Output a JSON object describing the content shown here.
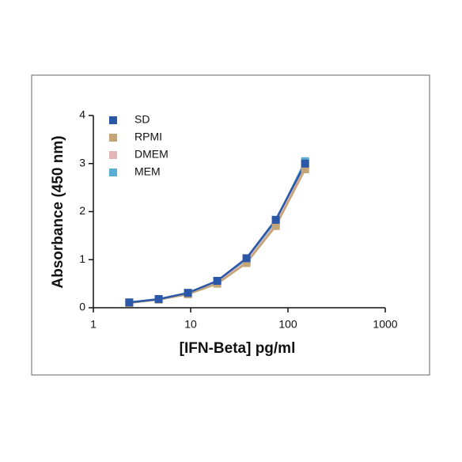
{
  "chart_data": {
    "type": "line",
    "x_label": "[IFN-Beta] pg/ml",
    "y_label": "Absorbance (450 nm)",
    "x": [
      2.34,
      4.69,
      9.38,
      18.75,
      37.5,
      75,
      150
    ],
    "series": [
      {
        "name": "SD",
        "color": "#2b57a8",
        "values": [
          0.11,
          0.18,
          0.31,
          0.56,
          1.03,
          1.83,
          3.0
        ]
      },
      {
        "name": "RPMI",
        "color": "#c4a578",
        "values": [
          0.1,
          0.17,
          0.28,
          0.5,
          0.93,
          1.7,
          2.88
        ]
      },
      {
        "name": "DMEM",
        "color": "#e2b6b6",
        "values": [
          0.1,
          0.17,
          0.29,
          0.52,
          0.96,
          1.74,
          2.92
        ]
      },
      {
        "name": "MEM",
        "color": "#5aaed2",
        "values": [
          0.11,
          0.18,
          0.3,
          0.55,
          1.0,
          1.8,
          3.05
        ]
      }
    ],
    "x_log": true,
    "xlim": [
      1,
      1000
    ],
    "xticks": [
      1,
      10,
      100,
      1000
    ],
    "ylim": [
      0,
      4
    ],
    "yticks": [
      0,
      1,
      2,
      3,
      4
    ],
    "legend": "top-left"
  }
}
